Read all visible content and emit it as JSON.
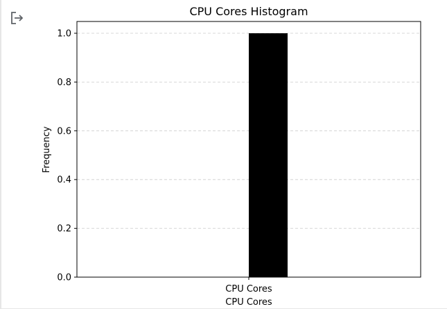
{
  "toolbar": {
    "export_icon": "export-icon"
  },
  "chart_data": {
    "type": "bar",
    "title": "CPU Cores Histogram",
    "xlabel": "CPU Cores",
    "ylabel": "Frequency",
    "categories": [
      "CPU Cores"
    ],
    "values": [
      1.0
    ],
    "ylim": [
      0,
      1.0
    ],
    "yticks": [
      "0.0",
      "0.2",
      "0.4",
      "0.6",
      "0.8",
      "1.0"
    ],
    "grid": "horizontal-dashed",
    "bar_color": "#000000",
    "grid_color": "#cccccc"
  }
}
